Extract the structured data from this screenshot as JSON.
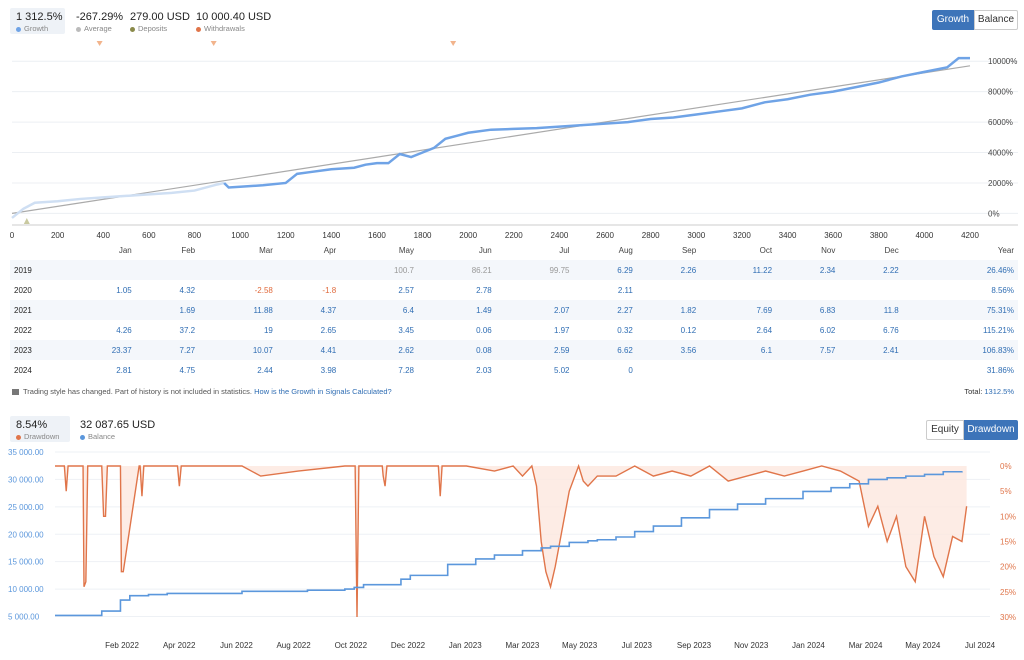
{
  "top_stats": [
    {
      "value": "1 312.5%",
      "label": "Growth",
      "color": "#6fa3e6"
    },
    {
      "value": "-267.29%",
      "label": "Average",
      "color": "#bbbbbb"
    },
    {
      "value": "279.00 USD",
      "label": "Deposits",
      "color": "#8a8a4a"
    },
    {
      "value": "10 000.40 USD",
      "label": "Withdrawals",
      "color": "#e0754a"
    }
  ],
  "top_toggle": {
    "growth": "Growth",
    "balance": "Balance"
  },
  "chart_data": [
    {
      "type": "line",
      "x_ticks": [
        "0",
        "200",
        "400",
        "600",
        "800",
        "1000",
        "1200",
        "1400",
        "1600",
        "1800",
        "2000",
        "2200",
        "2400",
        "2600",
        "2800",
        "3000",
        "3200",
        "3400",
        "3600",
        "3800",
        "4000",
        "4200"
      ],
      "y_ticks": [
        "0%",
        "2000%",
        "4000%",
        "6000%",
        "8000%",
        "10000%"
      ],
      "xlim": [
        0,
        4200
      ],
      "ylim": [
        -500,
        11000
      ],
      "series": [
        {
          "name": "Growth",
          "color": "#6fa3e6",
          "x": [
            0,
            50,
            100,
            150,
            200,
            300,
            400,
            500,
            600,
            700,
            800,
            900,
            930,
            950,
            1000,
            1100,
            1200,
            1250,
            1300,
            1400,
            1500,
            1550,
            1600,
            1650,
            1700,
            1750,
            1800,
            1850,
            1900,
            1950,
            2000,
            2100,
            2200,
            2300,
            2400,
            2500,
            2600,
            2700,
            2800,
            2900,
            3000,
            3100,
            3200,
            3300,
            3400,
            3500,
            3600,
            3700,
            3800,
            3850,
            3900,
            4000,
            4100,
            4150,
            4200
          ],
          "y": [
            -300,
            300,
            700,
            750,
            800,
            950,
            1050,
            1150,
            1250,
            1350,
            1500,
            1900,
            2000,
            1700,
            1750,
            1850,
            2000,
            2600,
            2700,
            2900,
            3000,
            3200,
            3300,
            3300,
            3900,
            3700,
            4000,
            4300,
            4900,
            5100,
            5300,
            5500,
            5550,
            5600,
            5700,
            5800,
            5900,
            6000,
            6200,
            6300,
            6500,
            6700,
            6900,
            7300,
            7500,
            7800,
            8000,
            8300,
            8600,
            8800,
            9000,
            9300,
            9600,
            10200,
            10200
          ]
        },
        {
          "name": "Average",
          "color": "#aaaaaa",
          "x": [
            0,
            4200
          ],
          "y": [
            0,
            9700
          ]
        }
      ],
      "markers_withdrawal_x": [
        200,
        700,
        1750
      ],
      "marker_deposit_x": [
        100
      ]
    },
    {
      "type": "table",
      "columns": [
        "",
        "Jan",
        "Feb",
        "Mar",
        "Apr",
        "May",
        "Jun",
        "Jul",
        "Aug",
        "Sep",
        "Oct",
        "Nov",
        "Dec",
        "Year"
      ],
      "rows": [
        {
          "year": "2019",
          "cells": [
            "",
            "",
            "",
            "",
            "100.7",
            "86.21",
            "99.75",
            "6.29",
            "2.26",
            "11.22",
            "2.34",
            "2.22",
            "26.46%"
          ]
        },
        {
          "year": "2020",
          "cells": [
            "1.05",
            "4.32",
            "-2.58",
            "-1.8",
            "2.57",
            "2.78",
            "",
            "2.11",
            "",
            "",
            "",
            "",
            "8.56%"
          ]
        },
        {
          "year": "2021",
          "cells": [
            "",
            "1.69",
            "11.88",
            "4.37",
            "6.4",
            "1.49",
            "2.07",
            "2.27",
            "1.82",
            "7.69",
            "6.83",
            "11.8",
            "75.31%"
          ]
        },
        {
          "year": "2022",
          "cells": [
            "4.26",
            "37.2",
            "19",
            "2.65",
            "3.45",
            "0.06",
            "1.97",
            "0.32",
            "0.12",
            "2.64",
            "6.02",
            "6.76",
            "115.21%"
          ]
        },
        {
          "year": "2023",
          "cells": [
            "23.37",
            "7.27",
            "10.07",
            "4.41",
            "2.62",
            "0.08",
            "2.59",
            "6.62",
            "3.56",
            "6.1",
            "7.57",
            "2.41",
            "106.83%"
          ]
        },
        {
          "year": "2024",
          "cells": [
            "2.81",
            "4.75",
            "2.44",
            "3.98",
            "7.28",
            "2.03",
            "5.02",
            "0",
            "",
            "",
            "",
            "",
            "31.86%"
          ]
        }
      ]
    },
    {
      "type": "line",
      "x_ticks": [
        "Feb 2022",
        "Apr 2022",
        "Jun 2022",
        "Aug 2022",
        "Oct 2022",
        "Dec 2022",
        "Jan 2023",
        "Mar 2023",
        "May 2023",
        "Jul 2023",
        "Sep 2023",
        "Nov 2023",
        "Jan 2024",
        "Mar 2024",
        "May 2024",
        "Jul 2024"
      ],
      "y_left_ticks": [
        "35 000.00",
        "30 000.00",
        "25 000.00",
        "20 000.00",
        "15 000.00",
        "10 000.00",
        "5 000.00"
      ],
      "y_right_ticks": [
        "0%",
        "5%",
        "10%",
        "15%",
        "20%",
        "25%",
        "30%"
      ],
      "xlim": [
        0,
        100
      ],
      "ylim_left": [
        4000,
        35000
      ],
      "ylim_right": [
        0,
        31
      ],
      "series": [
        {
          "name": "Balance",
          "color": "#5b97dc",
          "axis": "left",
          "x": [
            0,
            4,
            5,
            7,
            8,
            10,
            12,
            20,
            27,
            31,
            32,
            33,
            37,
            38,
            42,
            45,
            47,
            50,
            52,
            53,
            55,
            57,
            58,
            60,
            62,
            64,
            67,
            70,
            73,
            76,
            80,
            83,
            85,
            87,
            89,
            91,
            93,
            95,
            97
          ],
          "y": [
            5200,
            5200,
            6000,
            8000,
            8800,
            9000,
            9200,
            9600,
            9800,
            10000,
            10300,
            10800,
            11800,
            12500,
            14500,
            15500,
            16200,
            17000,
            17500,
            17800,
            18500,
            18800,
            19000,
            19500,
            20500,
            21500,
            23000,
            24500,
            25500,
            26500,
            27800,
            28500,
            29200,
            30000,
            30300,
            30600,
            30900,
            31400,
            31500
          ]
        },
        {
          "name": "Drawdown",
          "color": "#e0754a",
          "axis": "right",
          "x": [
            0,
            1,
            1.2,
            1.4,
            2,
            3,
            3.1,
            3.3,
            3.5,
            5,
            5.2,
            5.4,
            5.6,
            7,
            7.1,
            7.3,
            9,
            9.1,
            9.3,
            9.5,
            13,
            13.1,
            13.3,
            13.5,
            20,
            22,
            26,
            31,
            32,
            32.1,
            32.3,
            32.5,
            34,
            35,
            35.1,
            35.3,
            35.5,
            36,
            41,
            41.2,
            41.4,
            44,
            47,
            49,
            50,
            51,
            51.5,
            52,
            52.5,
            53,
            53.5,
            54,
            55,
            56,
            56.5,
            57,
            58,
            60,
            62,
            64,
            66,
            68,
            70,
            72,
            74,
            76,
            78,
            80,
            82,
            84,
            86,
            87,
            88,
            89,
            90,
            91,
            92,
            93,
            94,
            95,
            96,
            97,
            97.5
          ],
          "y": [
            0,
            0,
            5,
            0,
            0,
            0,
            24,
            23,
            0,
            0,
            10,
            10,
            0,
            0,
            21,
            21,
            0,
            0,
            6,
            0,
            0,
            0,
            4,
            0,
            0,
            2,
            1,
            0,
            0,
            0,
            30,
            0,
            0,
            0,
            2,
            4,
            0,
            0,
            0,
            6,
            0,
            0,
            1,
            0,
            2,
            0,
            4,
            15,
            21,
            24,
            20,
            15,
            5,
            0,
            3,
            4,
            2,
            2,
            0,
            2,
            1,
            2,
            0,
            3,
            2,
            1,
            2,
            1,
            0,
            1,
            3,
            12,
            8,
            15,
            10,
            20,
            23,
            10,
            18,
            22,
            14,
            15,
            8
          ]
        }
      ]
    }
  ],
  "notice": {
    "text": "Trading style has changed. Part of history is not included in statistics.",
    "link": "How is the Growth in Signals Calculated?"
  },
  "total": {
    "label": "Total:",
    "value": "1312.5%"
  },
  "bottom_stats": [
    {
      "value": "8.54%",
      "label": "Drawdown",
      "color": "#e0754a"
    },
    {
      "value": "32 087.65 USD",
      "label": "Balance",
      "color": "#5b97dc"
    }
  ],
  "bottom_toggle": {
    "equity": "Equity",
    "drawdown": "Drawdown"
  }
}
